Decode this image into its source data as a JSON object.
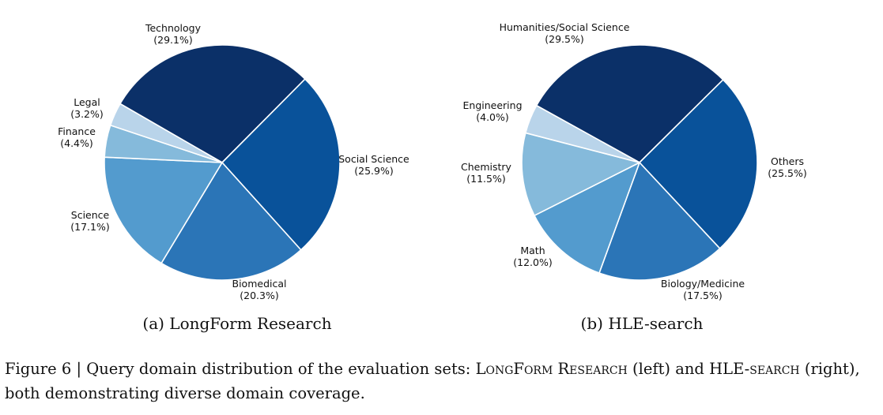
{
  "chart_data": [
    {
      "type": "pie",
      "subcaption": "(a) LongForm Research",
      "slices": [
        {
          "label": "Technology",
          "pct_label": "(29.1%)",
          "value": 29.1,
          "color": "#0b3068"
        },
        {
          "label": "Social Science",
          "pct_label": "(25.9%)",
          "value": 25.9,
          "color": "#09529a"
        },
        {
          "label": "Biomedical",
          "pct_label": "(20.3%)",
          "value": 20.3,
          "color": "#2b75b7"
        },
        {
          "label": "Science",
          "pct_label": "(17.1%)",
          "value": 17.1,
          "color": "#539bce"
        },
        {
          "label": "Finance",
          "pct_label": "(4.4%)",
          "value": 4.4,
          "color": "#85badb"
        },
        {
          "label": "Legal",
          "pct_label": "(3.2%)",
          "value": 3.2,
          "color": "#b9d4ea"
        }
      ]
    },
    {
      "type": "pie",
      "subcaption": "(b) HLE-search",
      "slices": [
        {
          "label": "Humanities/Social Science",
          "pct_label": "(29.5%)",
          "value": 29.5,
          "color": "#0b3068"
        },
        {
          "label": "Others",
          "pct_label": "(25.5%)",
          "value": 25.5,
          "color": "#09529a"
        },
        {
          "label": "Biology/Medicine",
          "pct_label": "(17.5%)",
          "value": 17.5,
          "color": "#2b75b7"
        },
        {
          "label": "Math",
          "pct_label": "(12.0%)",
          "value": 12.0,
          "color": "#539bce"
        },
        {
          "label": "Chemistry",
          "pct_label": "(11.5%)",
          "value": 11.5,
          "color": "#85badb"
        },
        {
          "label": "Engineering",
          "pct_label": "(4.0%)",
          "value": 4.0,
          "color": "#b9d4ea"
        }
      ]
    }
  ],
  "caption": {
    "prefix": "Figure 6 | Query domain distribution of the evaluation sets: ",
    "name_a": "LongForm Research",
    "mid": " (left) and ",
    "name_b": "HLE-search",
    "suffix": " (right), both demonstrating diverse domain coverage."
  }
}
